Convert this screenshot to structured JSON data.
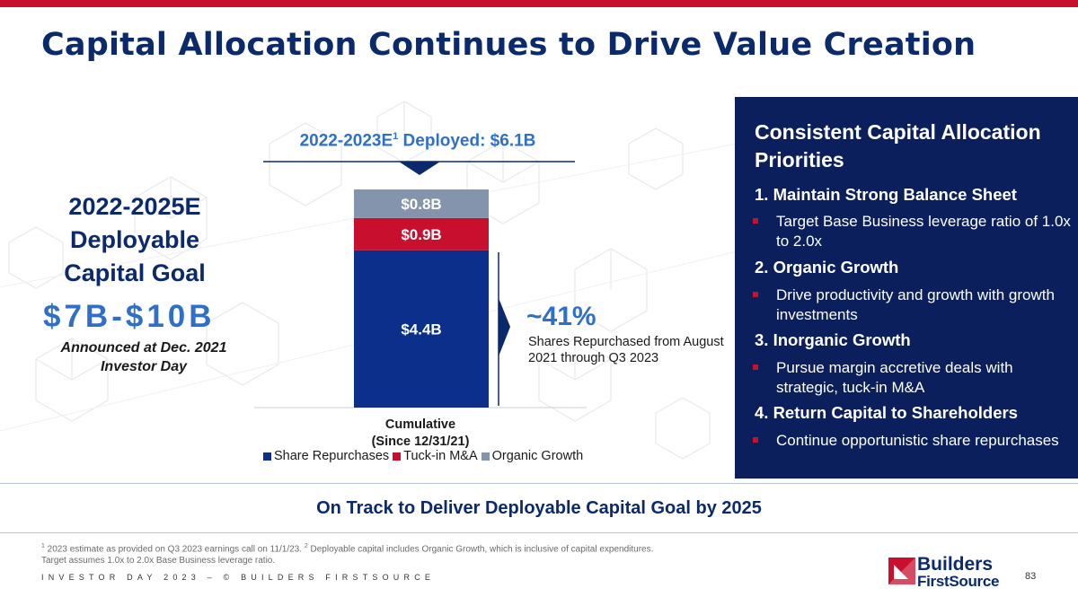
{
  "title": "Capital Allocation Continues to Drive Value Creation",
  "goal": {
    "title_lines": [
      "2022-2025E",
      "Deployable",
      "Capital Goal"
    ],
    "amount": "$7B-$10B",
    "note_lines": [
      "Announced at Dec. 2021",
      "Investor Day"
    ]
  },
  "deployed": {
    "prefix": "2022-2023E",
    "sup": "1",
    "suffix": " Deployed: $6.1B"
  },
  "chart_data": {
    "type": "bar",
    "stacked": true,
    "categories": [
      "Cumulative (Since 12/31/21)"
    ],
    "category_label_lines": [
      "Cumulative",
      "(Since 12/31/21)"
    ],
    "unit": "$B",
    "series": [
      {
        "name": "Share Repurchases",
        "values": [
          4.4
        ],
        "label": "$4.4B",
        "color": "#0b2f8a"
      },
      {
        "name": "Tuck-in M&A",
        "values": [
          0.9
        ],
        "label": "$0.9B",
        "color": "#c8102e"
      },
      {
        "name": "Organic Growth",
        "values": [
          0.8
        ],
        "label": "$0.8B",
        "color": "#8594ad"
      }
    ],
    "total": 6.1,
    "legend_position": "bottom"
  },
  "repurchase_callout": {
    "percent": "~41%",
    "description": "Shares Repurchased from August 2021 through Q3 2023"
  },
  "priorities": {
    "title": "Consistent Capital Allocation Priorities",
    "items": [
      {
        "heading": "1. Maintain Strong Balance Sheet",
        "detail": "Target Base Business leverage ratio of 1.0x to 2.0x"
      },
      {
        "heading": "2. Organic Growth",
        "detail": "Drive productivity and growth with growth investments"
      },
      {
        "heading": "3. Inorganic Growth",
        "detail": "Pursue margin accretive deals with strategic, tuck-in M&A"
      },
      {
        "heading": "4. Return Capital to Shareholders",
        "detail": "Continue opportunistic share repurchases"
      }
    ]
  },
  "on_track": "On Track to Deliver Deployable Capital Goal by 2025",
  "footnotes": {
    "n1": "1",
    "t1": " 2023 estimate as provided on Q3 2023 earnings call on 11/1/23. ",
    "n2": "2",
    "t2": " Deployable capital includes Organic Growth, which is inclusive of capital expenditures.",
    "line2": "Target assumes 1.0x to 2.0x Base Business leverage ratio."
  },
  "footer": "INVESTOR DAY 2023 – © BUILDERS FIRSTSOURCE",
  "logo": {
    "word1": "Builders",
    "word2": "FirstSource"
  },
  "page_number": "83",
  "colors": {
    "navy": "#0b2a6b",
    "panel": "#0b1f5c",
    "red": "#c8102e",
    "blue": "#2f6fc8"
  }
}
